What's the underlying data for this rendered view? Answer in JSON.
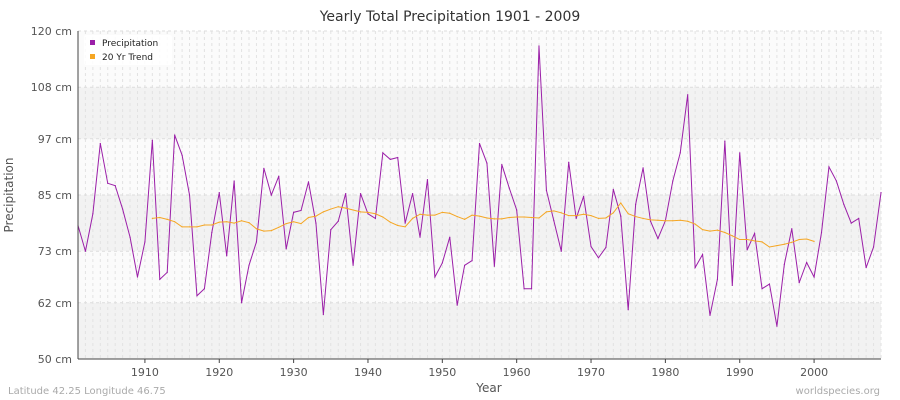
{
  "chart_data": {
    "type": "line",
    "title": "Yearly Total Precipitation 1901 - 2009",
    "xlabel": "Year",
    "ylabel": "Precipitation",
    "xlim": [
      1901,
      2009
    ],
    "ylim": [
      50,
      120
    ],
    "y_ticks": [
      {
        "value": 50,
        "label": "50 cm"
      },
      {
        "value": 62,
        "label": "62 cm"
      },
      {
        "value": 73,
        "label": "73 cm"
      },
      {
        "value": 85,
        "label": "85 cm"
      },
      {
        "value": 97,
        "label": "97 cm"
      },
      {
        "value": 108,
        "label": "108 cm"
      },
      {
        "value": 120,
        "label": "120 cm"
      }
    ],
    "x_ticks": [
      1910,
      1920,
      1930,
      1940,
      1950,
      1960,
      1970,
      1980,
      1990,
      2000
    ],
    "legend_position": "top-left",
    "series": [
      {
        "name": "Precipitation",
        "color": "#9b1fa8",
        "x_start": 1901,
        "values": [
          78.5,
          73,
          81,
          96,
          87.5,
          87,
          82,
          76,
          67.5,
          75,
          96.7,
          67,
          68.5,
          97.8,
          93.5,
          85,
          63.5,
          65,
          77,
          85.5,
          72,
          88,
          62,
          70,
          75,
          90.7,
          85,
          89,
          73.5,
          81.3,
          81.7,
          87.8,
          79,
          59.5,
          77.6,
          79.4,
          85.3,
          70,
          85.3,
          81,
          80,
          94,
          92.6,
          93,
          79,
          85.3,
          76,
          88.3,
          67.5,
          70.5,
          76,
          61.5,
          70,
          71,
          96,
          91.8,
          69.8,
          91.5,
          86.5,
          81.8,
          65,
          65,
          116.8,
          86,
          79.5,
          73,
          92,
          80,
          84.7,
          74,
          71.6,
          73.8,
          86.2,
          80.5,
          60.5,
          83,
          90.8,
          79.4,
          75.7,
          79.5,
          88,
          94,
          106.4,
          69.5,
          72.3,
          59.3,
          67,
          96.5,
          65.7,
          94,
          73.3,
          76.8,
          65,
          66,
          57,
          70.2,
          77.8,
          66.3,
          70.6,
          67.5,
          77,
          91,
          88,
          83,
          79,
          80,
          69.5,
          73.9,
          85.5
        ]
      },
      {
        "name": "20 Yr Trend",
        "color": "#f5a623",
        "x_start": 1911,
        "values": [
          80,
          80.2,
          79.8,
          79.3,
          78.2,
          78.2,
          78.2,
          78.6,
          78.6,
          79.2,
          79.3,
          79,
          79.5,
          79.1,
          77.8,
          77.3,
          77.4,
          78.1,
          78.9,
          79.3,
          78.9,
          80.2,
          80.5,
          81.4,
          82,
          82.5,
          82.2,
          81.8,
          81.4,
          81.3,
          81,
          80.3,
          79.2,
          78.5,
          78.2,
          80,
          80.9,
          80.7,
          80.7,
          81.3,
          81.1,
          80.4,
          79.8,
          80.7,
          80.5,
          80.1,
          79.9,
          79.9,
          80.2,
          80.3,
          80.3,
          80.2,
          80.1,
          81.4,
          81.6,
          81.2,
          80.6,
          80.6,
          80.9,
          80.6,
          80,
          80.1,
          81.2,
          83.3,
          81,
          80.4,
          80,
          79.7,
          79.6,
          79.5,
          79.5,
          79.6,
          79.4,
          78.8,
          77.6,
          77.3,
          77.5,
          77,
          76.3,
          75.5,
          75.5,
          75.2,
          75,
          73.9,
          74.2,
          74.5,
          74.9,
          75.5,
          75.6,
          75.1
        ]
      }
    ]
  },
  "credits": {
    "location": "Latitude 42.25 Longitude 46.75",
    "source": "worldspecies.org"
  }
}
